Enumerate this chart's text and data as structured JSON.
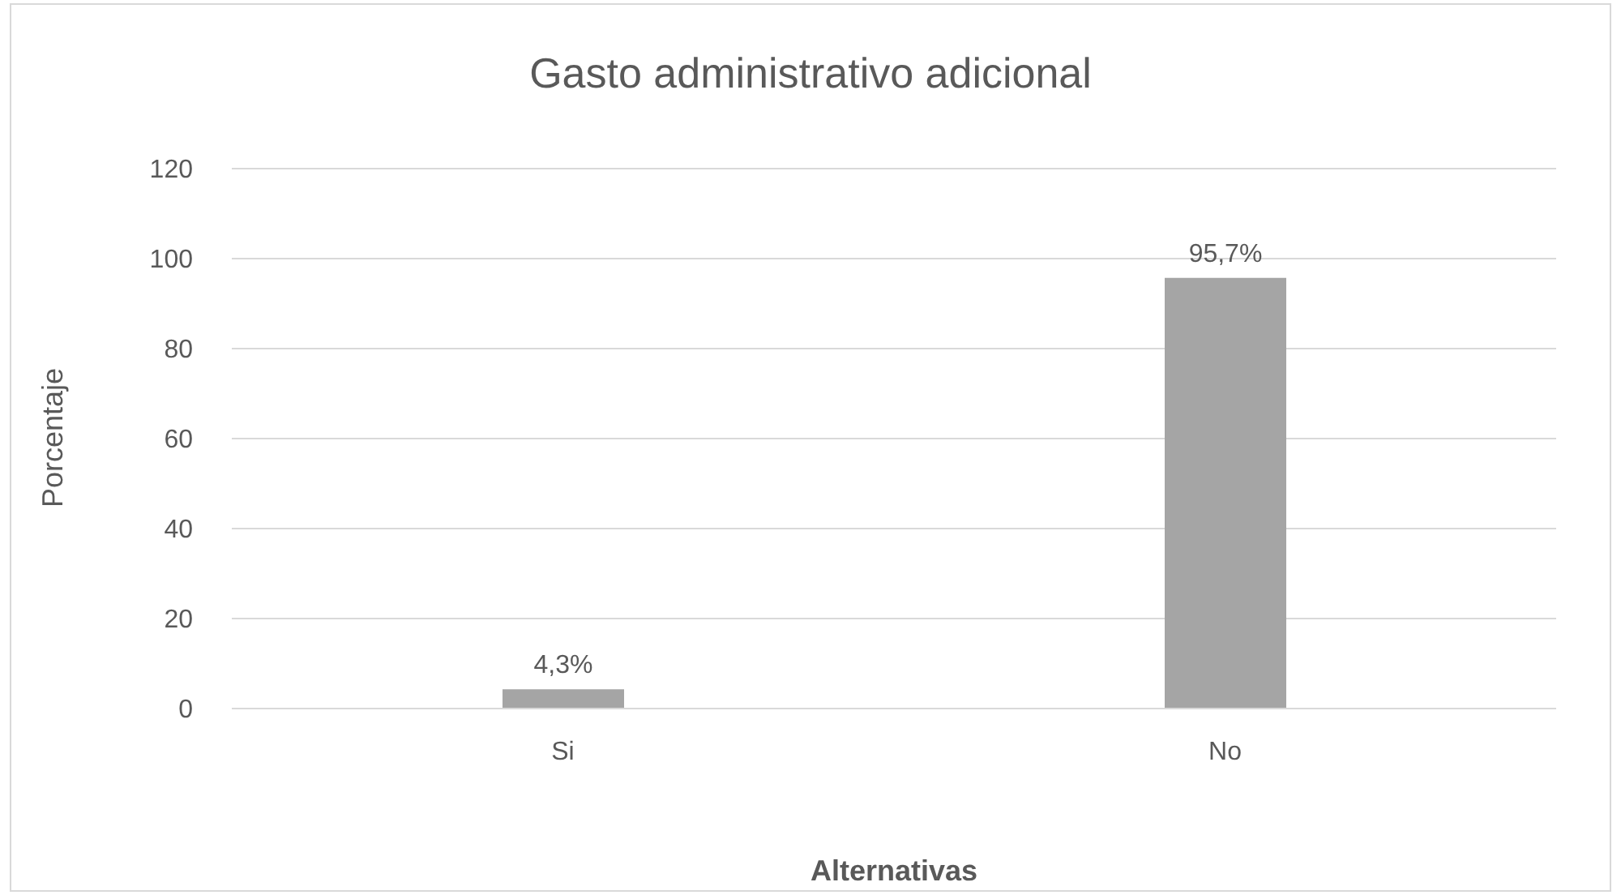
{
  "chart_data": {
    "type": "bar",
    "title": "Gasto administrativo adicional",
    "xlabel": "Alternativas",
    "ylabel": "Porcentaje",
    "categories": [
      "Si",
      "No"
    ],
    "values": [
      4.3,
      95.7
    ],
    "value_labels": [
      "4,3%",
      "95,7%"
    ],
    "color": "#a5a5a5",
    "ylim": [
      0,
      120
    ],
    "yticks": [
      0,
      20,
      40,
      60,
      80,
      100,
      120
    ],
    "grid": "y"
  }
}
